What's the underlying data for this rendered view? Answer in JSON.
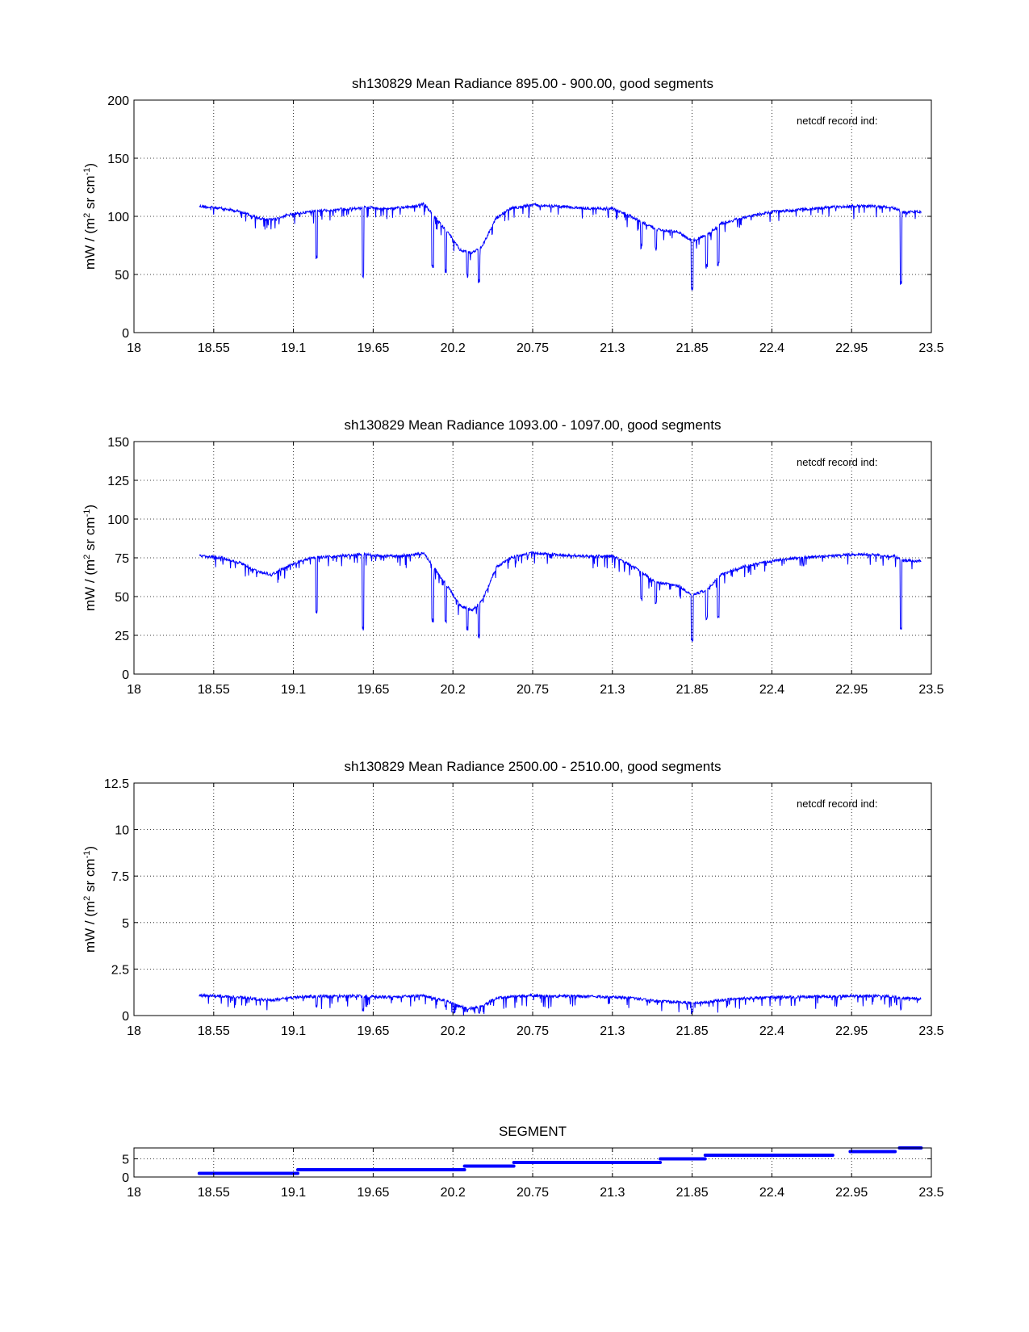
{
  "colors": {
    "series": "#0000ff",
    "axes": "#000000",
    "background": "#ffffff"
  },
  "chart_data": [
    {
      "type": "line",
      "title": "sh130829 Mean Radiance 895.00 - 900.00, good segments",
      "ylabel": "mW / (m² sr cm⁻¹)",
      "ylabel_parts": {
        "lead": "mW / (m",
        "sup1": "2",
        "mid": " sr cm",
        "sup2": "-1",
        "tail": ")"
      },
      "annotation": "netcdf record ind:",
      "xlim": [
        18,
        23.5
      ],
      "ylim": [
        0,
        200
      ],
      "xticks": [
        "18",
        "18.55",
        "19.1",
        "19.65",
        "20.2",
        "20.75",
        "21.3",
        "21.85",
        "22.4",
        "22.95",
        "23.5"
      ],
      "yticks": [
        "0",
        "50",
        "100",
        "150",
        "200"
      ],
      "grid": true,
      "series": [
        {
          "x": [
            18.45,
            18.6,
            18.75,
            18.85,
            18.95,
            19.05,
            19.15,
            19.25,
            19.4,
            19.55,
            19.6,
            19.7,
            19.8,
            19.95,
            20.0,
            20.08,
            20.18,
            20.25,
            20.33,
            20.4,
            20.5,
            20.6,
            20.75,
            20.9,
            21.1,
            21.3,
            21.45,
            21.6,
            21.75,
            21.85,
            21.95,
            22.05,
            22.2,
            22.4,
            22.6,
            22.8,
            22.95,
            23.1,
            23.2,
            23.25,
            23.3,
            23.43
          ],
          "y": [
            110,
            108,
            105,
            100,
            98,
            102,
            104,
            106,
            107,
            108,
            109,
            108,
            108,
            110,
            112,
            100,
            85,
            72,
            70,
            75,
            100,
            108,
            111,
            110,
            108,
            108,
            100,
            90,
            88,
            80,
            85,
            95,
            100,
            105,
            107,
            109,
            110,
            110,
            109,
            108,
            105,
            105
          ]
        }
      ],
      "dips": [
        {
          "x": 19.26,
          "y": 62
        },
        {
          "x": 19.58,
          "y": 47
        },
        {
          "x": 20.06,
          "y": 55
        },
        {
          "x": 20.15,
          "y": 50
        },
        {
          "x": 20.3,
          "y": 47
        },
        {
          "x": 20.38,
          "y": 42
        },
        {
          "x": 21.5,
          "y": 72
        },
        {
          "x": 21.6,
          "y": 70
        },
        {
          "x": 21.85,
          "y": 36
        },
        {
          "x": 21.95,
          "y": 55
        },
        {
          "x": 22.03,
          "y": 57
        },
        {
          "x": 23.29,
          "y": 41
        }
      ]
    },
    {
      "type": "line",
      "title": "sh130829 Mean Radiance 1093.00 - 1097.00, good segments",
      "ylabel": "mW / (m² sr cm⁻¹)",
      "ylabel_parts": {
        "lead": "mW / (m",
        "sup1": "2",
        "mid": " sr cm",
        "sup2": "-1",
        "tail": ")"
      },
      "annotation": "netcdf record ind:",
      "xlim": [
        18,
        23.5
      ],
      "ylim": [
        0,
        150
      ],
      "xticks": [
        "18",
        "18.55",
        "19.1",
        "19.65",
        "20.2",
        "20.75",
        "21.3",
        "21.85",
        "22.4",
        "22.95",
        "23.5"
      ],
      "yticks": [
        "0",
        "25",
        "50",
        "75",
        "100",
        "125",
        "150"
      ],
      "grid": true,
      "series": [
        {
          "x": [
            18.45,
            18.6,
            18.75,
            18.85,
            18.95,
            19.05,
            19.15,
            19.25,
            19.4,
            19.55,
            19.6,
            19.7,
            19.8,
            19.95,
            20.0,
            20.08,
            20.18,
            20.25,
            20.33,
            20.4,
            20.5,
            20.6,
            20.75,
            20.9,
            21.1,
            21.3,
            21.45,
            21.6,
            21.75,
            21.85,
            21.95,
            22.05,
            22.2,
            22.4,
            22.6,
            22.8,
            22.95,
            23.1,
            23.2,
            23.25,
            23.3,
            23.43
          ],
          "y": [
            77,
            76,
            72,
            67,
            65,
            70,
            74,
            76,
            77,
            78,
            78,
            77,
            77,
            78,
            79,
            68,
            55,
            45,
            42,
            48,
            70,
            76,
            79,
            78,
            77,
            77,
            70,
            60,
            58,
            52,
            55,
            65,
            70,
            74,
            76,
            77,
            78,
            78,
            77,
            77,
            74,
            74
          ]
        }
      ],
      "dips": [
        {
          "x": 19.26,
          "y": 39
        },
        {
          "x": 19.58,
          "y": 27
        },
        {
          "x": 20.06,
          "y": 33
        },
        {
          "x": 20.15,
          "y": 32
        },
        {
          "x": 20.3,
          "y": 28
        },
        {
          "x": 20.38,
          "y": 23
        },
        {
          "x": 21.5,
          "y": 46
        },
        {
          "x": 21.6,
          "y": 44
        },
        {
          "x": 21.85,
          "y": 21
        },
        {
          "x": 21.95,
          "y": 35
        },
        {
          "x": 22.03,
          "y": 36
        },
        {
          "x": 23.29,
          "y": 28
        }
      ]
    },
    {
      "type": "line",
      "title": "sh130829 Mean Radiance 2500.00 - 2510.00, good segments",
      "ylabel": "mW / (m² sr cm⁻¹)",
      "ylabel_parts": {
        "lead": "mW / (m",
        "sup1": "2",
        "mid": " sr cm",
        "sup2": "-1",
        "tail": ")"
      },
      "annotation": "netcdf record ind:",
      "xlim": [
        18,
        23.5
      ],
      "ylim": [
        0,
        12.5
      ],
      "xticks": [
        "18",
        "18.55",
        "19.1",
        "19.65",
        "20.2",
        "20.75",
        "21.3",
        "21.85",
        "22.4",
        "22.95",
        "23.5"
      ],
      "yticks": [
        "0",
        "2.5",
        "5",
        "7.5",
        "10",
        "12.5"
      ],
      "grid": true,
      "series": [
        {
          "x": [
            18.45,
            18.6,
            18.75,
            18.85,
            18.95,
            19.05,
            19.15,
            19.25,
            19.4,
            19.55,
            19.6,
            19.7,
            19.8,
            19.95,
            20.0,
            20.08,
            20.18,
            20.25,
            20.33,
            20.4,
            20.5,
            20.6,
            20.75,
            20.9,
            21.1,
            21.3,
            21.45,
            21.6,
            21.75,
            21.85,
            21.95,
            22.05,
            22.2,
            22.4,
            22.6,
            22.8,
            22.95,
            23.1,
            23.2,
            23.25,
            23.3,
            23.43
          ],
          "y": [
            1.15,
            1.12,
            1.05,
            0.95,
            0.9,
            1.0,
            1.08,
            1.1,
            1.12,
            1.12,
            1.1,
            1.08,
            1.08,
            1.12,
            1.13,
            1.0,
            0.8,
            0.55,
            0.45,
            0.6,
            1.0,
            1.1,
            1.15,
            1.12,
            1.1,
            1.08,
            1.0,
            0.85,
            0.8,
            0.75,
            0.8,
            0.9,
            1.0,
            1.05,
            1.08,
            1.1,
            1.12,
            1.12,
            1.1,
            1.08,
            1.0,
            1.0
          ]
        }
      ],
      "dips": [
        {
          "x": 19.26,
          "y": 0.4
        },
        {
          "x": 19.58,
          "y": 0.15
        },
        {
          "x": 20.15,
          "y": 0.3
        },
        {
          "x": 20.3,
          "y": 0.15
        },
        {
          "x": 20.38,
          "y": 0.1
        },
        {
          "x": 21.85,
          "y": 0.05
        },
        {
          "x": 23.29,
          "y": 0.3
        }
      ]
    },
    {
      "type": "scatter",
      "title": "SEGMENT",
      "xlim": [
        18,
        23.5
      ],
      "ylim": [
        0,
        8
      ],
      "xticks": [
        "18",
        "18.55",
        "19.1",
        "19.65",
        "20.2",
        "20.75",
        "21.3",
        "21.85",
        "22.4",
        "22.95",
        "23.5"
      ],
      "yticks": [
        "0",
        "5"
      ],
      "grid": true,
      "segments": [
        {
          "x0": 18.45,
          "x1": 19.13,
          "y": 1
        },
        {
          "x0": 19.13,
          "x1": 20.28,
          "y": 2
        },
        {
          "x0": 20.28,
          "x1": 20.62,
          "y": 3
        },
        {
          "x0": 20.62,
          "x1": 21.63,
          "y": 4
        },
        {
          "x0": 21.63,
          "x1": 21.94,
          "y": 5
        },
        {
          "x0": 21.94,
          "x1": 22.82,
          "y": 6
        },
        {
          "x0": 22.94,
          "x1": 23.25,
          "y": 7
        },
        {
          "x0": 23.28,
          "x1": 23.43,
          "y": 8
        }
      ]
    }
  ]
}
